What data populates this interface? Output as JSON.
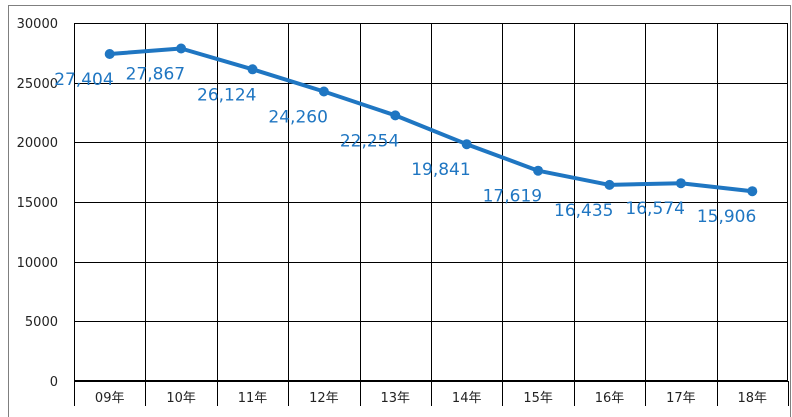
{
  "chart_data": {
    "type": "line",
    "title": "",
    "xlabel": "",
    "ylabel": "",
    "categories": [
      "09年",
      "10年",
      "11年",
      "12年",
      "13年",
      "14年",
      "15年",
      "16年",
      "17年",
      "18年"
    ],
    "ylim": [
      0,
      30000
    ],
    "yticks": [
      0,
      5000,
      10000,
      15000,
      20000,
      25000,
      30000
    ],
    "grid": true,
    "legend": "none",
    "series": [
      {
        "values": [
          27404,
          27867,
          26124,
          24260,
          22254,
          19841,
          17619,
          16435,
          16574,
          15906
        ],
        "labels": [
          "27,404",
          "27,867",
          "26,124",
          "24,260",
          "22,254",
          "19,841",
          "17,619",
          "16,435",
          "16,574",
          "15,906"
        ],
        "color": "#1f76c2"
      }
    ]
  }
}
